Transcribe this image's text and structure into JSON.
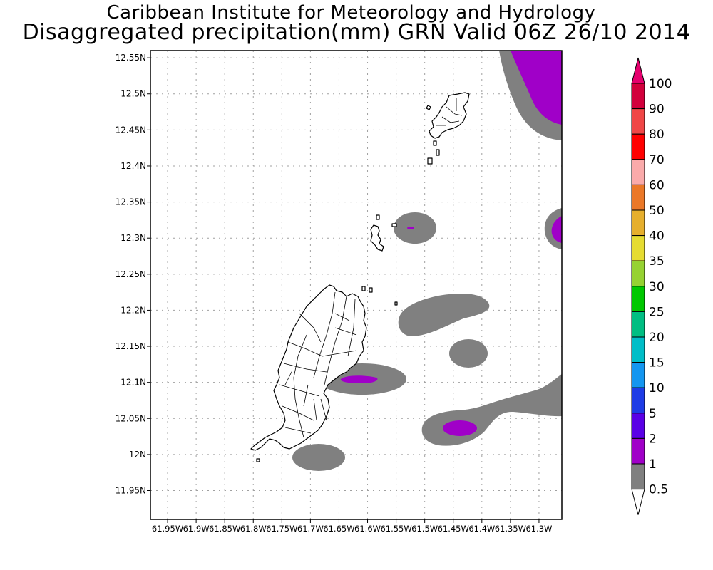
{
  "header": {
    "title_line1": "Caribbean Institute for Meteorology and Hydrology",
    "title_line2": "Disaggregated precipitation(mm) GRN Valid 06Z 26/10 2014"
  },
  "map": {
    "lat_labels": [
      "12.55N",
      "12.5N",
      "12.45N",
      "12.4N",
      "12.35N",
      "12.3N",
      "12.25N",
      "12.2N",
      "12.15N",
      "12.1N",
      "12.05N",
      "12N",
      "11.95N"
    ],
    "lon_labels": [
      "61.95W",
      "61.9W",
      "61.85W",
      "61.8W",
      "61.75W",
      "61.7W",
      "61.65W",
      "61.6W",
      "61.55W",
      "61.5W",
      "61.45W",
      "61.4W",
      "61.35W",
      "61.3W"
    ],
    "lon_range": [
      -61.98,
      -61.26
    ],
    "lat_range": [
      11.91,
      12.56
    ],
    "grid": true,
    "map_frame_color": "#000000",
    "land_outline_color": "#000000",
    "precip_fields": [
      {
        "level": "0.5-1",
        "color": "#808080"
      },
      {
        "level": "1-2",
        "color": "#a000c8"
      }
    ]
  },
  "colorbar": {
    "labels": [
      "100",
      "90",
      "80",
      "70",
      "60",
      "50",
      "40",
      "35",
      "30",
      "25",
      "20",
      "15",
      "10",
      "5",
      "2",
      "1",
      "0.5"
    ],
    "colors": [
      "#d2003c",
      "#f04646",
      "#ff0000",
      "#faaaaa",
      "#eb7828",
      "#e6af2d",
      "#e6dc32",
      "#96d232",
      "#00c800",
      "#00be82",
      "#00bec8",
      "#1496f0",
      "#1e3ce6",
      "#5a00e6",
      "#a000c8",
      "#808080"
    ],
    "top_arrow_color": "#e6006e",
    "bottom_arrow_color": "#ffffff"
  }
}
